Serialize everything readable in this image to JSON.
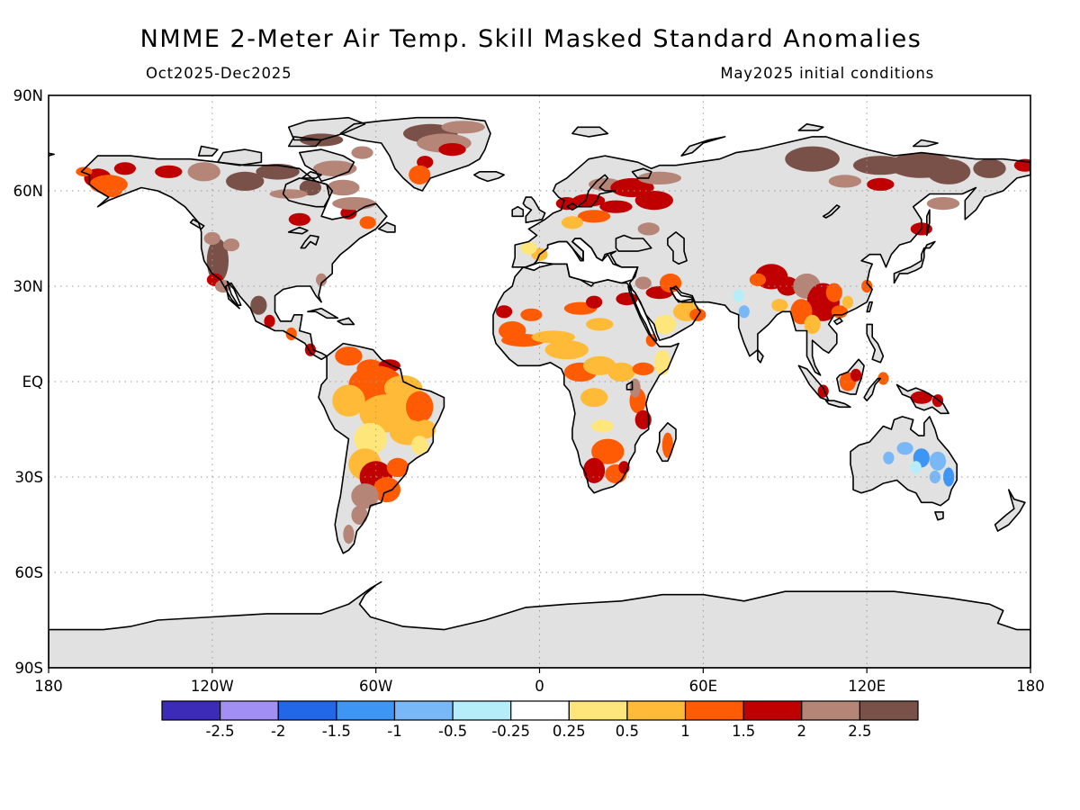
{
  "map": {
    "title": "NMME 2-Meter Air Temp. Skill Masked Standard Anomalies",
    "subtitle_left": "Oct2025-Dec2025",
    "subtitle_right": "May2025 initial conditions",
    "lat_labels": [
      {
        "value": 90,
        "label": "90N"
      },
      {
        "value": 60,
        "label": "60N"
      },
      {
        "value": 30,
        "label": "30N"
      },
      {
        "value": 0,
        "label": "EQ"
      },
      {
        "value": -30,
        "label": "30S"
      },
      {
        "value": -60,
        "label": "60S"
      },
      {
        "value": -90,
        "label": "90S"
      }
    ],
    "lon_labels": [
      {
        "value": -180,
        "label": "180"
      },
      {
        "value": -120,
        "label": "120W"
      },
      {
        "value": -60,
        "label": "60W"
      },
      {
        "value": 0,
        "label": "0"
      },
      {
        "value": 60,
        "label": "60E"
      },
      {
        "value": 120,
        "label": "120E"
      },
      {
        "value": 180,
        "label": "180"
      }
    ],
    "land_color": "#e1e1e1",
    "legend": {
      "colors": [
        "#3c2ab9",
        "#a18ff3",
        "#2167e8",
        "#3d95f4",
        "#79b8f7",
        "#b5edf9",
        "#ffffff",
        "#ffe67a",
        "#ffbb37",
        "#ff5a04",
        "#c00000",
        "#b58578",
        "#7a5148"
      ],
      "labels": [
        "-2.5",
        "-2",
        "-1.5",
        "-1",
        "-0.5",
        "-0.25",
        "0.25",
        "0.5",
        "1",
        "1.5",
        "2",
        "2.5"
      ]
    }
  }
}
